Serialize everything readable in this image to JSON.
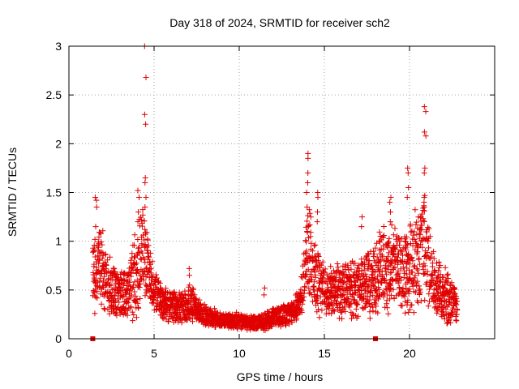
{
  "chart_data": {
    "type": "scatter",
    "title": "Day 318 of 2024, SRMTID for receiver sch2",
    "xlabel": "GPS time / hours",
    "ylabel": "SRMTID / TECUs",
    "xlim": [
      0,
      25
    ],
    "ylim": [
      0,
      3
    ],
    "xticks": [
      0,
      5,
      10,
      15,
      20
    ],
    "xtick_labels": [
      "0",
      "5",
      "10",
      "15",
      "20"
    ],
    "yticks": [
      0,
      0.5,
      1,
      1.5,
      2,
      2.5,
      3
    ],
    "ytick_labels": [
      "0",
      "0.5",
      "1",
      "1.5",
      "2",
      "2.5",
      "3"
    ],
    "grid": true,
    "marker": "+",
    "color": "#e00000",
    "square_markers_on_axis": [
      1.4,
      18.0
    ],
    "envelope": [
      {
        "t": 1.4,
        "base": 0.55,
        "spread": 0.7
      },
      {
        "t": 1.8,
        "base": 0.75,
        "spread": 0.8
      },
      {
        "t": 2.2,
        "base": 0.55,
        "spread": 0.6
      },
      {
        "t": 2.8,
        "base": 0.45,
        "spread": 0.5
      },
      {
        "t": 3.4,
        "base": 0.45,
        "spread": 0.5
      },
      {
        "t": 3.9,
        "base": 0.6,
        "spread": 0.8
      },
      {
        "t": 4.4,
        "base": 0.9,
        "spread": 0.9
      },
      {
        "t": 4.8,
        "base": 0.55,
        "spread": 0.5
      },
      {
        "t": 5.5,
        "base": 0.35,
        "spread": 0.35
      },
      {
        "t": 6.5,
        "base": 0.3,
        "spread": 0.3
      },
      {
        "t": 7.2,
        "base": 0.35,
        "spread": 0.35
      },
      {
        "t": 8.0,
        "base": 0.22,
        "spread": 0.2
      },
      {
        "t": 9.0,
        "base": 0.18,
        "spread": 0.15
      },
      {
        "t": 10.0,
        "base": 0.18,
        "spread": 0.15
      },
      {
        "t": 11.0,
        "base": 0.15,
        "spread": 0.15
      },
      {
        "t": 12.0,
        "base": 0.2,
        "spread": 0.2
      },
      {
        "t": 13.0,
        "base": 0.25,
        "spread": 0.2
      },
      {
        "t": 13.6,
        "base": 0.35,
        "spread": 0.3
      },
      {
        "t": 14.0,
        "base": 0.9,
        "spread": 0.9
      },
      {
        "t": 14.5,
        "base": 0.6,
        "spread": 0.8
      },
      {
        "t": 15.0,
        "base": 0.45,
        "spread": 0.45
      },
      {
        "t": 16.0,
        "base": 0.45,
        "spread": 0.5
      },
      {
        "t": 17.0,
        "base": 0.5,
        "spread": 0.6
      },
      {
        "t": 17.8,
        "base": 0.55,
        "spread": 0.7
      },
      {
        "t": 18.5,
        "base": 0.7,
        "spread": 0.9
      },
      {
        "t": 19.3,
        "base": 0.7,
        "spread": 0.7
      },
      {
        "t": 20.0,
        "base": 0.65,
        "spread": 0.9
      },
      {
        "t": 20.8,
        "base": 0.9,
        "spread": 1.1
      },
      {
        "t": 21.5,
        "base": 0.55,
        "spread": 0.6
      },
      {
        "t": 22.2,
        "base": 0.4,
        "spread": 0.5
      },
      {
        "t": 22.8,
        "base": 0.35,
        "spread": 0.45
      }
    ],
    "spikes": [
      {
        "t": 4.5,
        "values": [
          3.0,
          2.68,
          2.3,
          2.2,
          1.65,
          1.6,
          1.45,
          1.35
        ]
      },
      {
        "t": 4.1,
        "values": [
          1.52,
          1.45,
          1.3,
          1.2
        ]
      },
      {
        "t": 1.6,
        "values": [
          1.45,
          1.42,
          1.35,
          1.15
        ]
      },
      {
        "t": 14.0,
        "values": [
          1.9,
          1.85,
          1.7,
          1.6,
          1.5,
          1.35
        ]
      },
      {
        "t": 14.6,
        "values": [
          1.5,
          1.45,
          1.3,
          1.2
        ]
      },
      {
        "t": 18.9,
        "values": [
          1.45,
          1.4,
          1.3,
          1.2
        ]
      },
      {
        "t": 19.9,
        "values": [
          1.75,
          1.7,
          1.55,
          1.45
        ]
      },
      {
        "t": 20.9,
        "values": [
          2.38,
          2.33,
          2.12,
          2.08,
          1.75,
          1.7,
          1.45,
          1.4,
          1.35
        ]
      },
      {
        "t": 17.2,
        "values": [
          1.25,
          1.15
        ]
      },
      {
        "t": 7.1,
        "values": [
          0.72,
          0.65
        ]
      },
      {
        "t": 11.5,
        "values": [
          0.52,
          0.45
        ]
      }
    ]
  }
}
